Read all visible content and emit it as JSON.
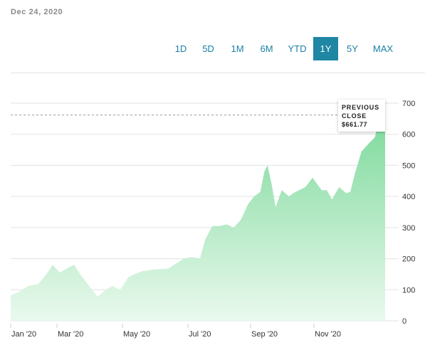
{
  "header": {
    "date": "Dec 24, 2020"
  },
  "range_tabs": [
    {
      "label": "1D",
      "active": false
    },
    {
      "label": "5D",
      "active": false
    },
    {
      "label": "1M",
      "active": false
    },
    {
      "label": "6M",
      "active": false
    },
    {
      "label": "YTD",
      "active": false
    },
    {
      "label": "1Y",
      "active": true
    },
    {
      "label": "5Y",
      "active": false
    },
    {
      "label": "MAX",
      "active": false
    }
  ],
  "tooltip": {
    "line1": "PREVIOUS",
    "line2": "CLOSE",
    "value": "$661.77"
  },
  "colors": {
    "accent": "#1f86a3",
    "area_top": "#7dd99b",
    "area_bottom": "#eaf9ee",
    "reference_line": "#999999"
  },
  "chart_data": {
    "type": "area",
    "title": "",
    "xlabel": "",
    "ylabel": "",
    "ylim": [
      0,
      700
    ],
    "yticks": [
      0,
      100,
      200,
      300,
      400,
      500,
      600,
      700
    ],
    "xticks": [
      "Jan '20",
      "Mar '20",
      "May '20",
      "Jul '20",
      "Sep '20",
      "Nov '20"
    ],
    "grid": true,
    "reference_line": {
      "label": "PREVIOUS CLOSE",
      "value": 661.77
    },
    "series": [
      {
        "x": [
          "2019-12-24",
          "2020-01-02",
          "2020-01-10",
          "2020-01-20",
          "2020-01-28",
          "2020-02-03",
          "2020-02-10",
          "2020-02-19",
          "2020-02-24",
          "2020-03-02",
          "2020-03-09",
          "2020-03-18",
          "2020-03-24",
          "2020-04-01",
          "2020-04-09",
          "2020-04-17",
          "2020-04-23",
          "2020-05-01",
          "2020-05-12",
          "2020-05-26",
          "2020-06-10",
          "2020-06-18",
          "2020-06-26",
          "2020-07-01",
          "2020-07-08",
          "2020-07-15",
          "2020-07-22",
          "2020-07-29",
          "2020-08-05",
          "2020-08-12",
          "2020-08-18",
          "2020-08-24",
          "2020-08-28",
          "2020-08-31",
          "2020-09-04",
          "2020-09-08",
          "2020-09-14",
          "2020-09-21",
          "2020-09-25",
          "2020-10-01",
          "2020-10-07",
          "2020-10-14",
          "2020-10-23",
          "2020-10-28",
          "2020-11-02",
          "2020-11-09",
          "2020-11-16",
          "2020-11-20",
          "2020-11-25",
          "2020-12-01",
          "2020-12-08",
          "2020-12-14",
          "2020-12-18",
          "2020-12-22",
          "2020-12-24"
        ],
        "y": [
          82,
          95,
          112,
          118,
          150,
          180,
          155,
          172,
          180,
          145,
          115,
          78,
          95,
          112,
          100,
          140,
          150,
          160,
          165,
          168,
          200,
          205,
          200,
          260,
          305,
          305,
          310,
          300,
          325,
          375,
          400,
          415,
          480,
          500,
          440,
          365,
          420,
          400,
          410,
          420,
          430,
          460,
          420,
          420,
          390,
          430,
          410,
          415,
          480,
          545,
          570,
          590,
          650,
          630,
          660
        ]
      }
    ]
  }
}
